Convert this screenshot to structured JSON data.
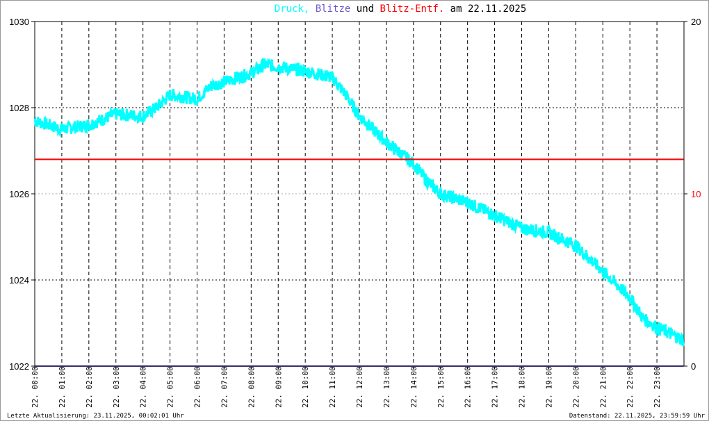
{
  "title": {
    "part1": "Druck,",
    "part1_color": "#00ffff",
    "part2": "Blitze",
    "part2_color": "#6a5acd",
    "part3": "und",
    "part4": "Blitz-Entf.",
    "part4_color": "#ff0000",
    "part5": "am 22.11.2025"
  },
  "footer": {
    "left": "Letzte Aktualisierung: 23.11.2025, 00:02:01 Uhr",
    "right": "Datenstand: 22.11.2025, 23:59:59 Uhr"
  },
  "chart_data": {
    "type": "line",
    "title": "Druck, Blitze und Blitz-Entf. am 22.11.2025",
    "grid": true,
    "y_left": {
      "ylim": [
        1022,
        1030
      ],
      "ticks": [
        "1030",
        "1028",
        "1026",
        "1024",
        "1022"
      ]
    },
    "y_right": {
      "ylim": [
        0,
        20
      ],
      "ticks": [
        "20",
        "10",
        "0"
      ],
      "tick_colors": [
        "#000000",
        "#ff0000",
        "#000000"
      ]
    },
    "x_ticks": [
      "22. 00:00",
      "22. 01:00",
      "22. 02:00",
      "22. 03:00",
      "22. 04:00",
      "22. 05:00",
      "22. 06:00",
      "22. 07:00",
      "22. 08:00",
      "22. 09:00",
      "22. 10:00",
      "22. 11:00",
      "22. 12:00",
      "22. 13:00",
      "22. 14:00",
      "22. 15:00",
      "22. 16:00",
      "22. 17:00",
      "22. 18:00",
      "22. 19:00",
      "22. 20:00",
      "22. 21:00",
      "22. 22:00",
      "22. 23:00"
    ],
    "series": [
      {
        "name": "Druck",
        "color": "#00ffff",
        "axis": "left",
        "x": [
          "00:00",
          "01:00",
          "02:00",
          "03:00",
          "04:00",
          "04:30",
          "05:00",
          "06:00",
          "06:30",
          "07:00",
          "08:00",
          "08:30",
          "09:00",
          "10:00",
          "11:00",
          "11:30",
          "12:00",
          "13:00",
          "14:00",
          "14:30",
          "15:00",
          "16:00",
          "17:00",
          "18:00",
          "19:00",
          "20:00",
          "21:00",
          "22:00",
          "22:30",
          "23:00",
          "23:59"
        ],
        "values": [
          1027.7,
          1027.5,
          1027.6,
          1027.85,
          1027.8,
          1028.0,
          1028.3,
          1028.2,
          1028.5,
          1028.6,
          1028.8,
          1029.0,
          1028.95,
          1028.85,
          1028.7,
          1028.3,
          1027.8,
          1027.2,
          1026.7,
          1026.3,
          1026.0,
          1025.8,
          1025.5,
          1025.2,
          1025.1,
          1024.8,
          1024.2,
          1023.6,
          1023.1,
          1022.9,
          1022.6
        ]
      },
      {
        "name": "Blitze",
        "color": "#6a5acd",
        "axis": "right",
        "x": [
          "00:00",
          "23:59"
        ],
        "values": [
          0,
          0
        ]
      },
      {
        "name": "Blitz-Entf.",
        "color": "#ff0000",
        "axis": "right",
        "x": [
          "00:00",
          "23:59"
        ],
        "values": [
          12,
          12
        ]
      }
    ]
  }
}
